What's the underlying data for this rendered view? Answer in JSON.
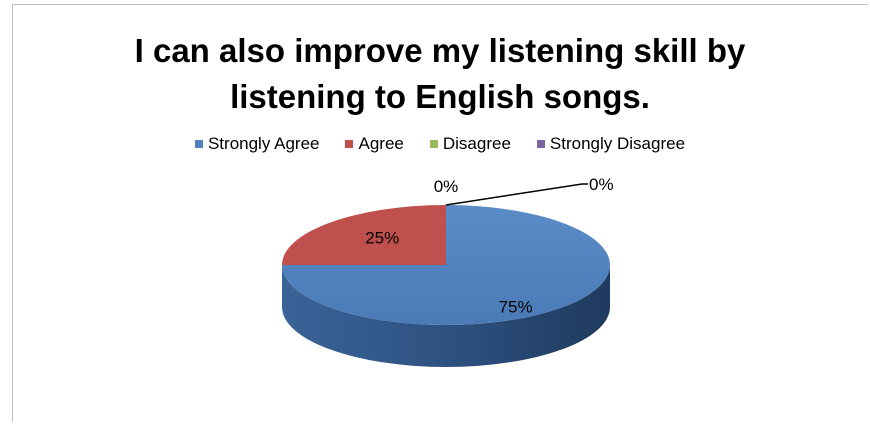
{
  "chart_data": {
    "type": "pie",
    "title": "I can also improve my listening skill by listening to English songs.",
    "title_lines": [
      "I can also improve my listening skill by",
      "listening to English songs."
    ],
    "categories": [
      "Strongly Agree",
      "Agree",
      "Disagree",
      "Strongly Disagree"
    ],
    "values": [
      75,
      25,
      0,
      0
    ],
    "data_labels": [
      "75%",
      "25%",
      "0%",
      "0%"
    ],
    "colors": [
      "#4F81BD",
      "#C0504D",
      "#9BBB59",
      "#8064A2"
    ],
    "legend_position": "top",
    "style": "3d-pie"
  }
}
